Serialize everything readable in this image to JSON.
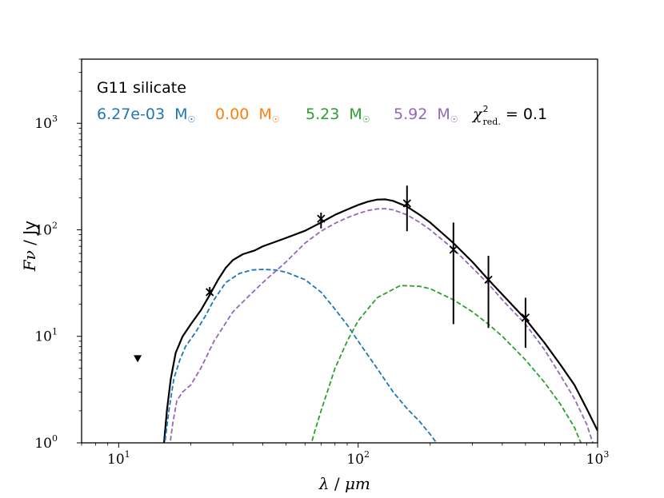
{
  "chart_data": {
    "type": "line",
    "xscale": "log",
    "yscale": "log",
    "xlim": [
      7,
      1000
    ],
    "ylim": [
      1,
      4000
    ],
    "xlabel": {
      "symbol": "λ",
      "unit": "μm",
      "sep": " / "
    },
    "ylabel": {
      "symbol": "Fν",
      "unit": "Jy",
      "sep": " / "
    },
    "x_ticks": [
      {
        "value": 10,
        "base": "10",
        "exp": "1"
      },
      {
        "value": 100,
        "base": "10",
        "exp": "2"
      },
      {
        "value": 1000,
        "base": "10",
        "exp": "3"
      }
    ],
    "y_ticks": [
      {
        "value": 1,
        "base": "10",
        "exp": "0"
      },
      {
        "value": 10,
        "base": "10",
        "exp": "1"
      },
      {
        "value": 100,
        "base": "10",
        "exp": "2"
      },
      {
        "value": 1000,
        "base": "10",
        "exp": "3"
      }
    ],
    "title": "G11 silicate",
    "annotations": {
      "mass_blue": {
        "value": "6.27e-03",
        "unit": "M",
        "color": "#1f77b4"
      },
      "mass_orange": {
        "value": "0.00",
        "unit": "M",
        "color": "#ff7f0e"
      },
      "mass_green": {
        "value": "5.23",
        "unit": "M",
        "color": "#2ca02c"
      },
      "mass_purple": {
        "value": "5.92",
        "unit": "M",
        "color": "#9467bd"
      },
      "chi2": {
        "symbol": "χ",
        "sup": "2",
        "sub": "red.",
        "eq": " = ",
        "value": "0.1"
      }
    },
    "series": [
      {
        "name": "total",
        "color": "#000000",
        "dash": "solid",
        "points": [
          [
            15.4,
            0.9
          ],
          [
            15.9,
            2.0
          ],
          [
            16.5,
            4.0
          ],
          [
            17.3,
            7.0
          ],
          [
            18.5,
            10.0
          ],
          [
            20,
            13.0
          ],
          [
            22,
            17.5
          ],
          [
            24,
            24.5
          ],
          [
            26,
            34
          ],
          [
            28,
            44
          ],
          [
            30,
            52
          ],
          [
            33,
            59
          ],
          [
            37,
            64
          ],
          [
            40,
            70
          ],
          [
            45,
            77
          ],
          [
            50,
            84
          ],
          [
            60,
            98
          ],
          [
            70,
            117
          ],
          [
            80,
            138
          ],
          [
            90,
            155
          ],
          [
            100,
            171
          ],
          [
            110,
            184
          ],
          [
            120,
            192
          ],
          [
            130,
            193
          ],
          [
            140,
            187
          ],
          [
            160,
            165
          ],
          [
            180,
            139
          ],
          [
            200,
            117
          ],
          [
            250,
            75
          ],
          [
            300,
            50
          ],
          [
            350,
            34
          ],
          [
            400,
            24.7
          ],
          [
            500,
            14.5
          ],
          [
            600,
            8.7
          ],
          [
            700,
            5.4
          ],
          [
            800,
            3.5
          ],
          [
            900,
            2.1
          ],
          [
            1000,
            1.3
          ]
        ]
      },
      {
        "name": "blue component",
        "color": "#1f77b4",
        "dash": "dashed",
        "points": [
          [
            15.5,
            0.9
          ],
          [
            16.2,
            2.0
          ],
          [
            17,
            4.0
          ],
          [
            18,
            6.0
          ],
          [
            19,
            8.0
          ],
          [
            21,
            11.0
          ],
          [
            23,
            15.5
          ],
          [
            25,
            22
          ],
          [
            28,
            32
          ],
          [
            32,
            39
          ],
          [
            36,
            42
          ],
          [
            40,
            42.5
          ],
          [
            45,
            42
          ],
          [
            50,
            40
          ],
          [
            60,
            34
          ],
          [
            70,
            26
          ],
          [
            80,
            18
          ],
          [
            90,
            12.8
          ],
          [
            100,
            9
          ],
          [
            120,
            5
          ],
          [
            140,
            3
          ],
          [
            160,
            2.1
          ],
          [
            180,
            1.6
          ],
          [
            200,
            1.2
          ],
          [
            220,
            0.9
          ]
        ]
      },
      {
        "name": "green component",
        "color": "#2ca02c",
        "dash": "dashed",
        "points": [
          [
            63,
            0.9
          ],
          [
            66,
            1.3
          ],
          [
            70,
            2.0
          ],
          [
            75,
            3.2
          ],
          [
            80,
            5
          ],
          [
            90,
            9
          ],
          [
            100,
            14
          ],
          [
            120,
            23
          ],
          [
            150,
            30
          ],
          [
            180,
            29.5
          ],
          [
            200,
            28
          ],
          [
            250,
            22
          ],
          [
            300,
            17
          ],
          [
            350,
            13
          ],
          [
            400,
            10
          ],
          [
            500,
            6
          ],
          [
            600,
            3.7
          ],
          [
            700,
            2.3
          ],
          [
            800,
            1.4
          ],
          [
            860,
            0.95
          ]
        ]
      },
      {
        "name": "purple component",
        "color": "#9467bd",
        "dash": "dashed",
        "points": [
          [
            16.3,
            0.9
          ],
          [
            16.8,
            1.5
          ],
          [
            17.5,
            2.5
          ],
          [
            18.5,
            3.0
          ],
          [
            20,
            3.5
          ],
          [
            22,
            5
          ],
          [
            25,
            9
          ],
          [
            30,
            17
          ],
          [
            35,
            24
          ],
          [
            40,
            32
          ],
          [
            50,
            50
          ],
          [
            60,
            75
          ],
          [
            70,
            97
          ],
          [
            80,
            115
          ],
          [
            90,
            130
          ],
          [
            100,
            142
          ],
          [
            110,
            152
          ],
          [
            120,
            157
          ],
          [
            130,
            158
          ],
          [
            140,
            154
          ],
          [
            160,
            138
          ],
          [
            180,
            118
          ],
          [
            200,
            100
          ],
          [
            250,
            66
          ],
          [
            300,
            44
          ],
          [
            350,
            31
          ],
          [
            400,
            22
          ],
          [
            500,
            13
          ],
          [
            600,
            7.5
          ],
          [
            700,
            4.3
          ],
          [
            800,
            2.6
          ],
          [
            900,
            1.5
          ],
          [
            970,
            0.9
          ]
        ]
      }
    ],
    "data_points": [
      {
        "x": 24,
        "y": 26,
        "err": [
          24,
          29
        ]
      },
      {
        "x": 70,
        "y": 127,
        "err": [
          103,
          145
        ]
      },
      {
        "x": 160,
        "y": 177,
        "err": [
          97,
          260
        ]
      },
      {
        "x": 250,
        "y": 65,
        "err": [
          13,
          117
        ]
      },
      {
        "x": 350,
        "y": 34,
        "err": [
          12,
          57
        ]
      },
      {
        "x": 500,
        "y": 15,
        "err": [
          7.8,
          23
        ]
      }
    ],
    "upper_limits": [
      {
        "x": 12,
        "y": 6.2
      }
    ]
  }
}
